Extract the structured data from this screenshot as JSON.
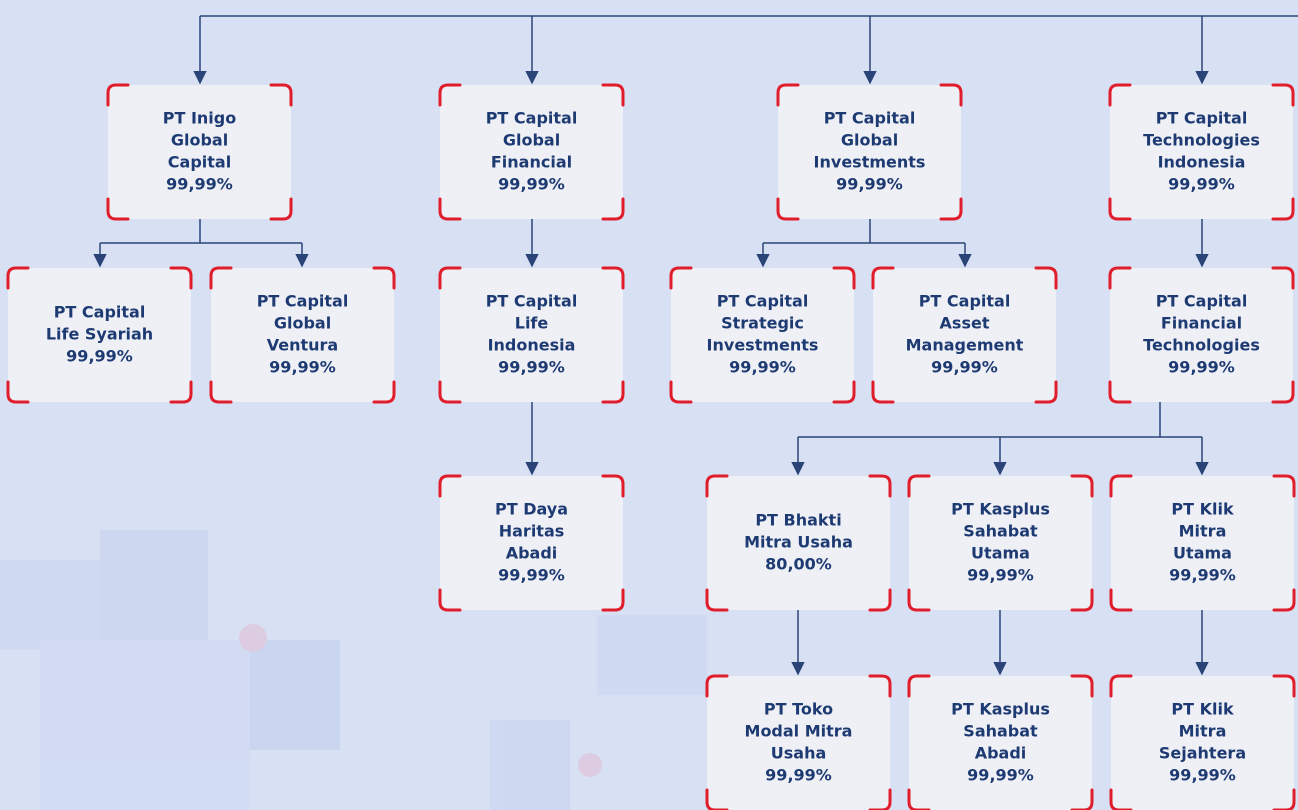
{
  "nodes": [
    {
      "lines": [
        "PT Inigo",
        "Global",
        "Capital"
      ],
      "share": "99,99%"
    },
    {
      "lines": [
        "PT Capital",
        "Global",
        "Financial"
      ],
      "share": "99,99%"
    },
    {
      "lines": [
        "PT Capital",
        "Global",
        "Investments"
      ],
      "share": "99,99%"
    },
    {
      "lines": [
        "PT Capital",
        "Technologies",
        "Indonesia"
      ],
      "share": "99,99%"
    },
    {
      "lines": [
        "PT Capital",
        "Life Syariah"
      ],
      "share": "99,99%"
    },
    {
      "lines": [
        "PT Capital",
        "Global",
        "Ventura"
      ],
      "share": "99,99%"
    },
    {
      "lines": [
        "PT Capital",
        "Life",
        "Indonesia"
      ],
      "share": "99,99%"
    },
    {
      "lines": [
        "PT Capital",
        "Strategic",
        "Investments"
      ],
      "share": "99,99%"
    },
    {
      "lines": [
        "PT Capital",
        "Asset",
        "Management"
      ],
      "share": "99,99%"
    },
    {
      "lines": [
        "PT Capital",
        "Financial",
        "Technologies"
      ],
      "share": "99,99%"
    },
    {
      "lines": [
        "PT Daya",
        "Haritas",
        "Abadi"
      ],
      "share": "99,99%"
    },
    {
      "lines": [
        "PT Bhakti",
        "Mitra Usaha"
      ],
      "share": "80,00%"
    },
    {
      "lines": [
        "PT Kasplus",
        "Sahabat",
        "Utama"
      ],
      "share": "99,99%"
    },
    {
      "lines": [
        "PT Klik",
        "Mitra",
        "Utama"
      ],
      "share": "99,99%"
    },
    {
      "lines": [
        "PT Toko",
        "Modal Mitra",
        "Usaha"
      ],
      "share": "99,99%"
    },
    {
      "lines": [
        "PT Kasplus",
        "Sahabat",
        "Abadi"
      ],
      "share": "99,99%"
    },
    {
      "lines": [
        "PT Klik",
        "Mitra",
        "Sejahtera"
      ],
      "share": "99,99%"
    }
  ]
}
